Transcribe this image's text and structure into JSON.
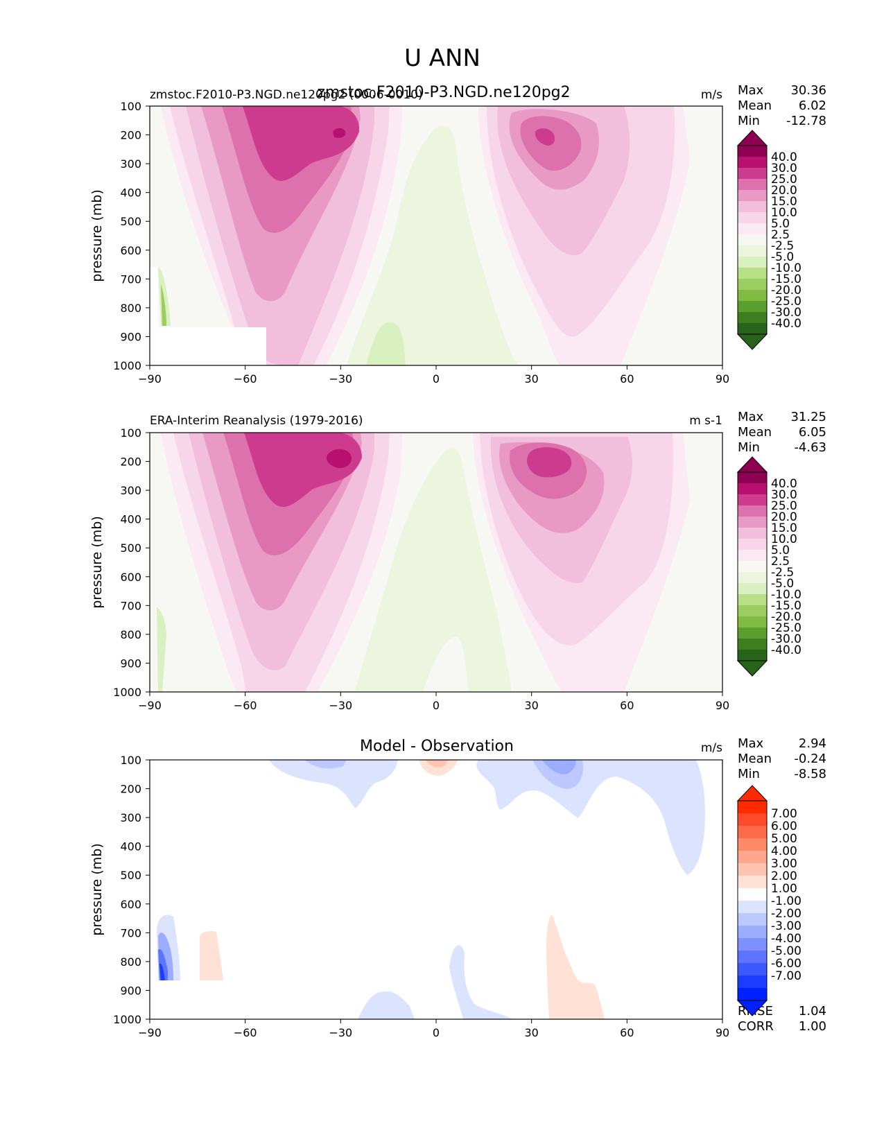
{
  "page_title": "U ANN",
  "chart_data": [
    {
      "type": "contour",
      "panel": "test",
      "center_title": "zmstoc.F2010-P3.NGD.ne120pg2",
      "left_title": "zmstoc.F2010-P3.NGD.ne120pg2 (0006-0010)",
      "units": "m/s",
      "ylabel": "pressure (mb)",
      "xlim": [
        -90,
        90
      ],
      "ylim": [
        1000,
        100
      ],
      "xticks": [
        -90,
        -60,
        -30,
        0,
        30,
        60,
        90
      ],
      "xtick_labels": [
        "−90",
        "−60",
        "−30",
        "0",
        "30",
        "60",
        "90"
      ],
      "yticks": [
        100,
        200,
        300,
        400,
        500,
        600,
        700,
        800,
        900,
        1000
      ],
      "ytick_labels": [
        "100",
        "200",
        "300",
        "400",
        "500",
        "600",
        "700",
        "800",
        "900",
        "1000"
      ],
      "stats": [
        {
          "label": "Max",
          "value": "30.36"
        },
        {
          "label": "Mean",
          "value": "6.02"
        },
        {
          "label": "Min",
          "value": "-12.78"
        }
      ],
      "colorbar": {
        "levels": [
          "40.0",
          "30.0",
          "25.0",
          "20.0",
          "15.0",
          "10.0",
          "5.0",
          "2.5",
          "-2.5",
          "-5.0",
          "-10.0",
          "-15.0",
          "-20.0",
          "-25.0",
          "-30.0",
          "-40.0"
        ],
        "colors": [
          "#8e0152",
          "#b8106f",
          "#cc3b8e",
          "#dd71ad",
          "#e89ac5",
          "#f1bedc",
          "#f8d6ea",
          "#fbe9f3",
          "#f7f7f4",
          "#edf5df",
          "#d9f0c0",
          "#b8e186",
          "#9bcd60",
          "#7fbc41",
          "#5a9e2d",
          "#3d7f1f",
          "#276419"
        ]
      }
    },
    {
      "type": "contour",
      "panel": "reference",
      "left_title": "ERA-Interim Reanalysis (1979-2016)",
      "units": "m s-1",
      "ylabel": "pressure (mb)",
      "xlim": [
        -90,
        90
      ],
      "ylim": [
        1000,
        100
      ],
      "xticks": [
        -90,
        -60,
        -30,
        0,
        30,
        60,
        90
      ],
      "xtick_labels": [
        "−90",
        "−60",
        "−30",
        "0",
        "30",
        "60",
        "90"
      ],
      "yticks": [
        100,
        200,
        300,
        400,
        500,
        600,
        700,
        800,
        900,
        1000
      ],
      "ytick_labels": [
        "100",
        "200",
        "300",
        "400",
        "500",
        "600",
        "700",
        "800",
        "900",
        "1000"
      ],
      "stats": [
        {
          "label": "Max",
          "value": "31.25"
        },
        {
          "label": "Mean",
          "value": "6.05"
        },
        {
          "label": "Min",
          "value": "-4.63"
        }
      ],
      "colorbar": {
        "levels": [
          "40.0",
          "30.0",
          "25.0",
          "20.0",
          "15.0",
          "10.0",
          "5.0",
          "2.5",
          "-2.5",
          "-5.0",
          "-10.0",
          "-15.0",
          "-20.0",
          "-25.0",
          "-30.0",
          "-40.0"
        ],
        "colors": [
          "#8e0152",
          "#b8106f",
          "#cc3b8e",
          "#dd71ad",
          "#e89ac5",
          "#f1bedc",
          "#f8d6ea",
          "#fbe9f3",
          "#f7f7f4",
          "#edf5df",
          "#d9f0c0",
          "#b8e186",
          "#9bcd60",
          "#7fbc41",
          "#5a9e2d",
          "#3d7f1f",
          "#276419"
        ]
      }
    },
    {
      "type": "contour",
      "panel": "difference",
      "center_title": "Model - Observation",
      "units": "m/s",
      "ylabel": "pressure (mb)",
      "xlim": [
        -90,
        90
      ],
      "ylim": [
        1000,
        100
      ],
      "xticks": [
        -90,
        -60,
        -30,
        0,
        30,
        60,
        90
      ],
      "xtick_labels": [
        "−90",
        "−60",
        "−30",
        "0",
        "30",
        "60",
        "90"
      ],
      "yticks": [
        100,
        200,
        300,
        400,
        500,
        600,
        700,
        800,
        900,
        1000
      ],
      "ytick_labels": [
        "100",
        "200",
        "300",
        "400",
        "500",
        "600",
        "700",
        "800",
        "900",
        "1000"
      ],
      "stats": [
        {
          "label": "Max",
          "value": "2.94"
        },
        {
          "label": "Mean",
          "value": "-0.24"
        },
        {
          "label": "Min",
          "value": "-8.58"
        }
      ],
      "extra_stats": [
        {
          "label": "RMSE",
          "value": "1.04"
        },
        {
          "label": "CORR",
          "value": "1.00"
        }
      ],
      "colorbar": {
        "levels": [
          "7.00",
          "6.00",
          "5.00",
          "4.00",
          "3.00",
          "2.00",
          "1.00",
          "-1.00",
          "-2.00",
          "-3.00",
          "-4.00",
          "-5.00",
          "-6.00",
          "-7.00"
        ],
        "colors": [
          "#ff2a00",
          "#ff4a2a",
          "#ff6a4a",
          "#ff8a6a",
          "#ffa78e",
          "#ffc4b1",
          "#ffe1d6",
          "#ffffff",
          "#dce3ff",
          "#bcc8ff",
          "#9cacff",
          "#7c90ff",
          "#5c74ff",
          "#3c58ff",
          "#1c3cff",
          "#0020ff"
        ]
      }
    }
  ]
}
